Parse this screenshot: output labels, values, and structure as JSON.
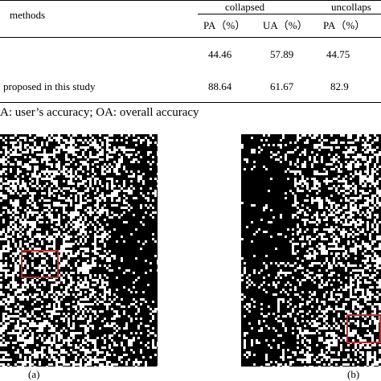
{
  "table": {
    "header": {
      "methods": "methods",
      "collapsed": "collapsed",
      "uncollapsed": "uncollaps",
      "sub": [
        "PA（%）",
        "UA（%）",
        "PA（%）"
      ]
    },
    "rows": [
      {
        "method": "",
        "values": [
          "44.46",
          "57.89",
          "44.75"
        ]
      },
      {
        "method": "proposed in this study",
        "values": [
          "88.64",
          "61.67",
          "82.9"
        ]
      }
    ],
    "footnote": "A: user’s accuracy; OA: overall accuracy"
  },
  "figure": {
    "panels": [
      {
        "label": "(a)"
      },
      {
        "label": "(b)"
      }
    ],
    "colors": {
      "roi": "#c0282a",
      "background": "#000000",
      "pixels": "#ffffff"
    }
  }
}
